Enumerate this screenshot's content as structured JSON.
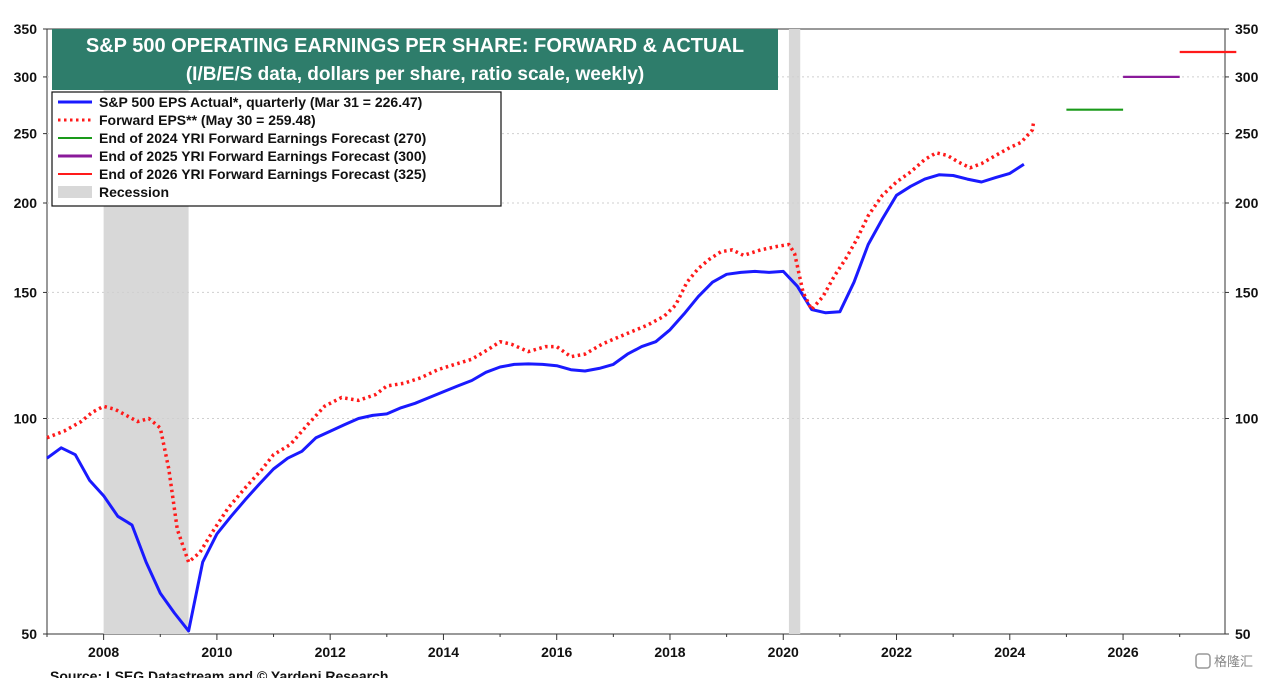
{
  "chart_data": {
    "type": "line",
    "title": "S&P 500 OPERATING EARNINGS PER SHARE: FORWARD & ACTUAL",
    "subtitle": "(I/B/E/S data, dollars per share, ratio scale, weekly)",
    "source": "Source: LSEG Datastream and © Yardeni Research.",
    "y_scale": "log",
    "ylim": [
      50,
      350
    ],
    "xlim": [
      2007.0,
      2027.8
    ],
    "y_ticks": [
      50,
      100,
      150,
      200,
      250,
      300,
      350
    ],
    "x_ticks": [
      2008,
      2010,
      2012,
      2014,
      2016,
      2018,
      2020,
      2022,
      2024,
      2026
    ],
    "grid": true,
    "legend_placement": "top-left",
    "recessions": [
      {
        "start": 2008.0,
        "end": 2009.5
      },
      {
        "start": 2020.1,
        "end": 2020.3
      }
    ],
    "series": [
      {
        "name": "S&P 500 EPS Actual*, quarterly (Mar 31 = 226.47)",
        "style": "solid",
        "color": "#1a1aff",
        "points": [
          [
            2007.0,
            88
          ],
          [
            2007.25,
            91
          ],
          [
            2007.5,
            89
          ],
          [
            2007.75,
            82
          ],
          [
            2008.0,
            78
          ],
          [
            2008.25,
            73
          ],
          [
            2008.5,
            71
          ],
          [
            2008.75,
            63
          ],
          [
            2009.0,
            57
          ],
          [
            2009.25,
            53.5
          ],
          [
            2009.5,
            50.5
          ],
          [
            2009.75,
            63
          ],
          [
            2010.0,
            69
          ],
          [
            2010.25,
            73
          ],
          [
            2010.5,
            77
          ],
          [
            2010.75,
            81
          ],
          [
            2011.0,
            85
          ],
          [
            2011.25,
            88
          ],
          [
            2011.5,
            90
          ],
          [
            2011.75,
            94
          ],
          [
            2012.0,
            96
          ],
          [
            2012.25,
            98
          ],
          [
            2012.5,
            100
          ],
          [
            2012.75,
            101
          ],
          [
            2013.0,
            101.5
          ],
          [
            2013.25,
            103.5
          ],
          [
            2013.5,
            105
          ],
          [
            2013.75,
            107
          ],
          [
            2014.0,
            109
          ],
          [
            2014.25,
            111
          ],
          [
            2014.5,
            113
          ],
          [
            2014.75,
            116
          ],
          [
            2015.0,
            118
          ],
          [
            2015.25,
            119
          ],
          [
            2015.5,
            119.2
          ],
          [
            2015.75,
            119
          ],
          [
            2016.0,
            118.5
          ],
          [
            2016.25,
            117
          ],
          [
            2016.5,
            116.5
          ],
          [
            2016.75,
            117.5
          ],
          [
            2017.0,
            119
          ],
          [
            2017.25,
            123
          ],
          [
            2017.5,
            126
          ],
          [
            2017.75,
            128
          ],
          [
            2018.0,
            133
          ],
          [
            2018.25,
            140
          ],
          [
            2018.5,
            148
          ],
          [
            2018.75,
            155
          ],
          [
            2019.0,
            159
          ],
          [
            2019.25,
            160
          ],
          [
            2019.5,
            160.5
          ],
          [
            2019.75,
            160
          ],
          [
            2020.0,
            160.5
          ],
          [
            2020.25,
            153
          ],
          [
            2020.5,
            142
          ],
          [
            2020.75,
            140.5
          ],
          [
            2021.0,
            141
          ],
          [
            2021.25,
            155
          ],
          [
            2021.5,
            175
          ],
          [
            2021.75,
            190
          ],
          [
            2022.0,
            205
          ],
          [
            2022.25,
            211
          ],
          [
            2022.5,
            216
          ],
          [
            2022.75,
            219
          ],
          [
            2023.0,
            218.5
          ],
          [
            2023.25,
            216
          ],
          [
            2023.5,
            214
          ],
          [
            2023.75,
            217
          ],
          [
            2024.0,
            220
          ],
          [
            2024.25,
            226.47
          ]
        ]
      },
      {
        "name": "Forward EPS** (May 30 = 259.48)",
        "style": "dotted",
        "color": "#ff1a1a",
        "points": [
          [
            2007.0,
            94
          ],
          [
            2007.3,
            96
          ],
          [
            2007.6,
            99
          ],
          [
            2007.8,
            102
          ],
          [
            2008.0,
            104
          ],
          [
            2008.2,
            103
          ],
          [
            2008.4,
            101
          ],
          [
            2008.6,
            99
          ],
          [
            2008.8,
            100
          ],
          [
            2009.0,
            97
          ],
          [
            2009.15,
            85
          ],
          [
            2009.3,
            70
          ],
          [
            2009.5,
            63
          ],
          [
            2009.7,
            65
          ],
          [
            2009.9,
            69
          ],
          [
            2010.2,
            75
          ],
          [
            2010.5,
            80
          ],
          [
            2010.8,
            85
          ],
          [
            2011.0,
            89
          ],
          [
            2011.3,
            92
          ],
          [
            2011.6,
            98
          ],
          [
            2011.9,
            104
          ],
          [
            2012.2,
            107
          ],
          [
            2012.5,
            106
          ],
          [
            2012.8,
            108
          ],
          [
            2013.0,
            111
          ],
          [
            2013.3,
            112
          ],
          [
            2013.6,
            114
          ],
          [
            2013.9,
            117
          ],
          [
            2014.2,
            119
          ],
          [
            2014.5,
            121
          ],
          [
            2014.8,
            125
          ],
          [
            2015.0,
            128
          ],
          [
            2015.2,
            127
          ],
          [
            2015.5,
            124
          ],
          [
            2015.8,
            126
          ],
          [
            2016.0,
            126
          ],
          [
            2016.25,
            122
          ],
          [
            2016.5,
            123
          ],
          [
            2016.8,
            127
          ],
          [
            2017.0,
            129
          ],
          [
            2017.3,
            132
          ],
          [
            2017.6,
            135
          ],
          [
            2017.9,
            139
          ],
          [
            2018.1,
            144
          ],
          [
            2018.3,
            155
          ],
          [
            2018.5,
            162
          ],
          [
            2018.7,
            167
          ],
          [
            2018.9,
            171
          ],
          [
            2019.1,
            172
          ],
          [
            2019.3,
            169
          ],
          [
            2019.6,
            172
          ],
          [
            2019.9,
            174
          ],
          [
            2020.1,
            175
          ],
          [
            2020.2,
            170
          ],
          [
            2020.35,
            150
          ],
          [
            2020.5,
            142
          ],
          [
            2020.7,
            148
          ],
          [
            2020.9,
            158
          ],
          [
            2021.1,
            167
          ],
          [
            2021.3,
            178
          ],
          [
            2021.5,
            192
          ],
          [
            2021.75,
            205
          ],
          [
            2022.0,
            214
          ],
          [
            2022.25,
            221
          ],
          [
            2022.5,
            230
          ],
          [
            2022.7,
            235
          ],
          [
            2022.9,
            233
          ],
          [
            2023.1,
            228
          ],
          [
            2023.3,
            224
          ],
          [
            2023.5,
            227
          ],
          [
            2023.75,
            233
          ],
          [
            2024.0,
            239
          ],
          [
            2024.2,
            243
          ],
          [
            2024.4,
            253
          ],
          [
            2024.42,
            259.48
          ]
        ]
      },
      {
        "name": "End of 2024 YRI Forward Earnings Forecast (270)",
        "style": "solid",
        "color": "#1a9a1a",
        "points": [
          [
            2025.0,
            270
          ],
          [
            2026.0,
            270
          ]
        ]
      },
      {
        "name": "End of 2025 YRI Forward Earnings Forecast (300)",
        "style": "solid",
        "color": "#8a1a9a",
        "points": [
          [
            2026.0,
            300
          ],
          [
            2027.0,
            300
          ]
        ]
      },
      {
        "name": "End of 2026 YRI Forward Earnings Forecast (325)",
        "style": "solid",
        "color": "#ff1a1a",
        "points": [
          [
            2027.0,
            325
          ],
          [
            2028.0,
            325
          ]
        ]
      }
    ],
    "legend_recession_label": "Recession"
  },
  "colors": {
    "title_bg": "#2e7d6b",
    "recession": "#d8d8d8",
    "grid": "#cfcfcf"
  },
  "watermark": "格隆汇"
}
